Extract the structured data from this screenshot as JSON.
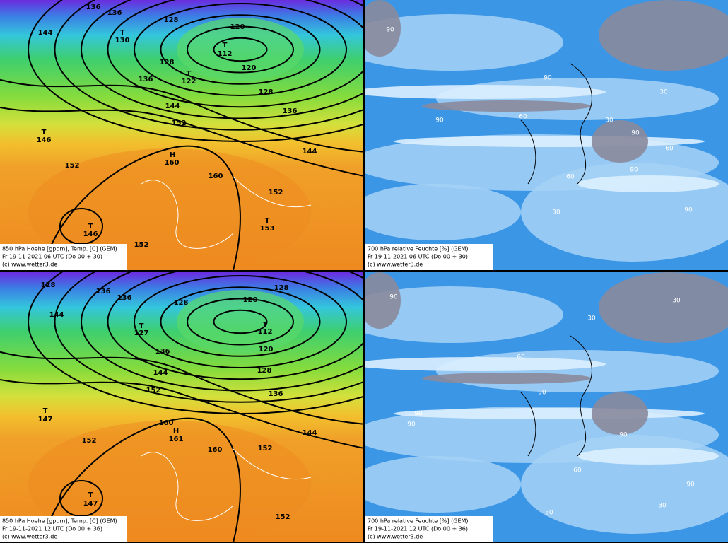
{
  "panels": [
    {
      "caption": [
        "850 hPa Hoehe [gpdm], Temp. [C] (GEM)",
        "Fr 19-11-2021 06  UTC (Do 00 + 30)",
        "(c) www.wetter3.de"
      ],
      "labels": [
        "136",
        "136",
        "128",
        "144",
        "120",
        "T",
        "112",
        "128",
        "T",
        "122",
        "136",
        "120",
        "128",
        "136",
        "144",
        "152",
        "T",
        "146",
        "H",
        "160",
        "144",
        "152",
        "160",
        "152",
        "T",
        "146",
        "T",
        "153",
        "152",
        "T",
        "130"
      ]
    },
    {
      "caption": [
        "700 hPa relative Feuchte [%] (GEM)",
        "Fr 19-11-2021 06  UTC (Do 00 + 30)",
        "(c) www.wetter3.de"
      ],
      "labels": [
        "90",
        "90",
        "60",
        "90",
        "90",
        "30",
        "30",
        "60",
        "90",
        "30",
        "90",
        "60"
      ]
    },
    {
      "caption": [
        "850 hPa Hoehe [gpdm], Temp. [C] (GEM)",
        "Fr 19-11-2021 12  UTC (Do 00 + 36)",
        "(c) www.wetter3.de"
      ],
      "labels": [
        "128",
        "136",
        "136",
        "128",
        "120",
        "128",
        "144",
        "T",
        "127",
        "T",
        "112",
        "120",
        "136",
        "128",
        "144",
        "152",
        "136",
        "T",
        "147",
        "160",
        "H",
        "161",
        "152",
        "144",
        "160",
        "152",
        "T",
        "147",
        "152"
      ]
    },
    {
      "caption": [
        "700 hPa relative Feuchte [%] (GEM)",
        "Fr 19-11-2021 12  UTC (Do 00 + 36)",
        "(c) www.wetter3.de"
      ],
      "labels": [
        "90",
        "90",
        "90",
        "90",
        "60",
        "30",
        "90",
        "30",
        "30",
        "60",
        "30",
        "90"
      ]
    }
  ]
}
